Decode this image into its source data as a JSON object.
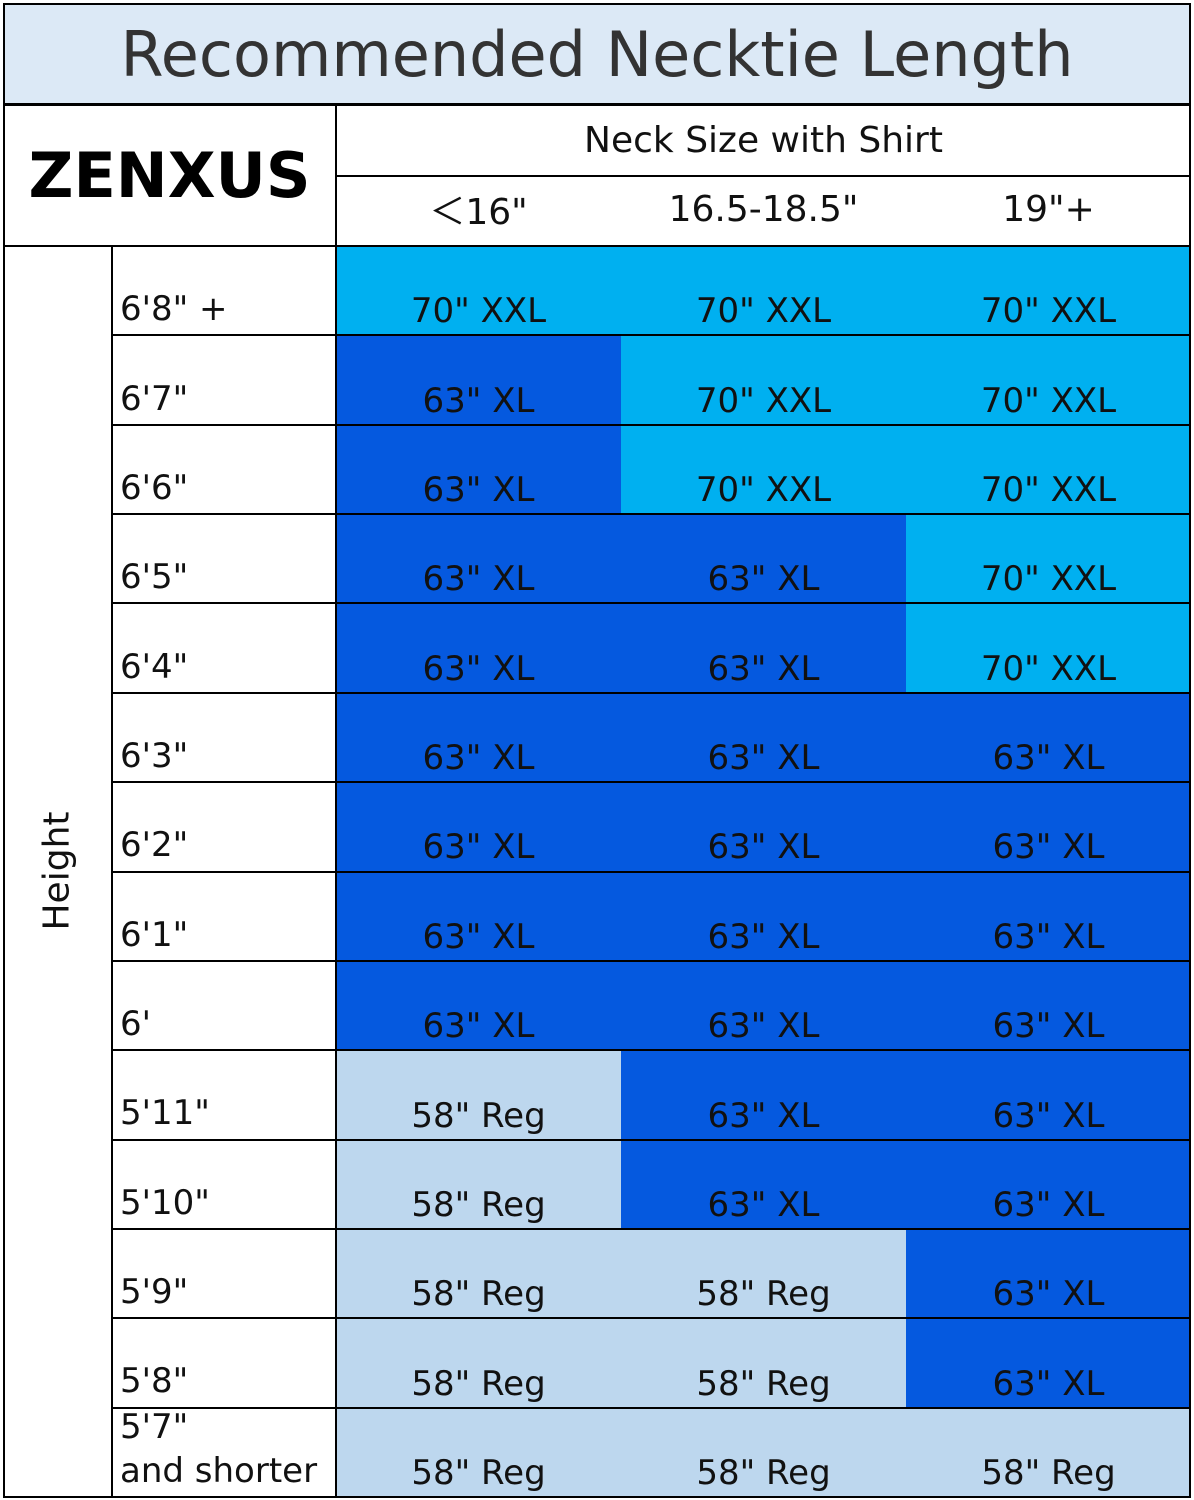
{
  "header": {
    "title": "Recommended Necktie Length"
  },
  "table": {
    "brand": "ZENXUS",
    "column_group": "Neck Size with Shirt",
    "columns": [
      "＜16\"",
      "16.5-18.5\"",
      "19\"+"
    ],
    "row_group": "Height",
    "rows": [
      {
        "label": "6'8\" +",
        "cells": [
          {
            "text": "70\" XXL",
            "color": "#00b0f0"
          },
          {
            "text": "70\" XXL",
            "color": "#00b0f0"
          },
          {
            "text": "70\" XXL",
            "color": "#00b0f0"
          }
        ]
      },
      {
        "label": "6'7\"",
        "cells": [
          {
            "text": "63\" XL",
            "color": "#0559df"
          },
          {
            "text": "70\" XXL",
            "color": "#00b0f0"
          },
          {
            "text": "70\" XXL",
            "color": "#00b0f0"
          }
        ]
      },
      {
        "label": "6'6\"",
        "cells": [
          {
            "text": "63\" XL",
            "color": "#0559df"
          },
          {
            "text": "70\" XXL",
            "color": "#00b0f0"
          },
          {
            "text": "70\" XXL",
            "color": "#00b0f0"
          }
        ]
      },
      {
        "label": "6'5\"",
        "cells": [
          {
            "text": "63\" XL",
            "color": "#0559df"
          },
          {
            "text": "63\" XL",
            "color": "#0559df"
          },
          {
            "text": "70\" XXL",
            "color": "#00b0f0"
          }
        ]
      },
      {
        "label": "6'4\"",
        "cells": [
          {
            "text": "63\" XL",
            "color": "#0559df"
          },
          {
            "text": "63\" XL",
            "color": "#0559df"
          },
          {
            "text": "70\" XXL",
            "color": "#00b0f0"
          }
        ]
      },
      {
        "label": "6'3\"",
        "cells": [
          {
            "text": "63\" XL",
            "color": "#0559df"
          },
          {
            "text": "63\" XL",
            "color": "#0559df"
          },
          {
            "text": "63\" XL",
            "color": "#0559df"
          }
        ]
      },
      {
        "label": "6'2\"",
        "cells": [
          {
            "text": "63\" XL",
            "color": "#0559df"
          },
          {
            "text": "63\" XL",
            "color": "#0559df"
          },
          {
            "text": "63\" XL",
            "color": "#0559df"
          }
        ]
      },
      {
        "label": "6'1\"",
        "cells": [
          {
            "text": "63\" XL",
            "color": "#0559df"
          },
          {
            "text": "63\" XL",
            "color": "#0559df"
          },
          {
            "text": "63\" XL",
            "color": "#0559df"
          }
        ]
      },
      {
        "label": "6'",
        "cells": [
          {
            "text": "63\" XL",
            "color": "#0559df"
          },
          {
            "text": "63\" XL",
            "color": "#0559df"
          },
          {
            "text": "63\" XL",
            "color": "#0559df"
          }
        ]
      },
      {
        "label": "5'11\"",
        "cells": [
          {
            "text": "58\" Reg",
            "color": "#bdd7ee"
          },
          {
            "text": "63\" XL",
            "color": "#0559df"
          },
          {
            "text": "63\" XL",
            "color": "#0559df"
          }
        ]
      },
      {
        "label": "5'10\"",
        "cells": [
          {
            "text": "58\" Reg",
            "color": "#bdd7ee"
          },
          {
            "text": "63\" XL",
            "color": "#0559df"
          },
          {
            "text": "63\" XL",
            "color": "#0559df"
          }
        ]
      },
      {
        "label": "5'9\"",
        "cells": [
          {
            "text": "58\" Reg",
            "color": "#bdd7ee"
          },
          {
            "text": "58\" Reg",
            "color": "#bdd7ee"
          },
          {
            "text": "63\" XL",
            "color": "#0559df"
          }
        ]
      },
      {
        "label": "5'8\"",
        "cells": [
          {
            "text": "58\" Reg",
            "color": "#bdd7ee"
          },
          {
            "text": "58\" Reg",
            "color": "#bdd7ee"
          },
          {
            "text": "63\" XL",
            "color": "#0559df"
          }
        ]
      },
      {
        "label": "5'7\"\nand shorter",
        "cells": [
          {
            "text": "58\" Reg",
            "color": "#bdd7ee"
          },
          {
            "text": "58\" Reg",
            "color": "#bdd7ee"
          },
          {
            "text": "58\" Reg",
            "color": "#bdd7ee"
          }
        ]
      }
    ]
  }
}
